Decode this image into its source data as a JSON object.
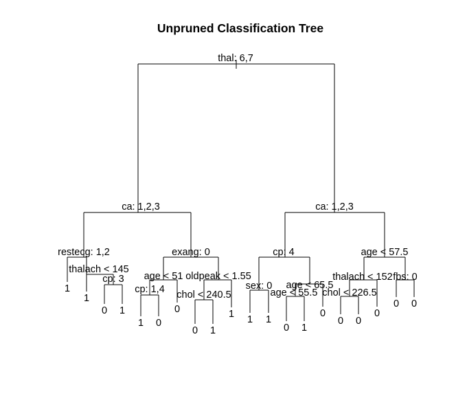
{
  "title": "Unpruned Classification Tree",
  "tree": {
    "split": "thal: 6,7",
    "left": {
      "split": "ca: 1,2,3",
      "left": {
        "split": "restecg: 1,2",
        "left": {
          "leaf": "1"
        },
        "right": {
          "split": "thalach < 145",
          "left": {
            "leaf": "1"
          },
          "right": {
            "split": "cp: 3",
            "left": {
              "leaf": "0"
            },
            "right": {
              "leaf": "1"
            }
          }
        }
      },
      "right": {
        "split": "exang: 0",
        "left": {
          "split": "age < 51",
          "left": {
            "split": "cp: 1,4",
            "left": {
              "leaf": "1"
            },
            "right": {
              "leaf": "0"
            }
          },
          "right": {
            "leaf": "0"
          }
        },
        "right": {
          "split": "oldpeak < 1.55",
          "left": {
            "split": "chol < 240.5",
            "left": {
              "leaf": "0"
            },
            "right": {
              "leaf": "1"
            }
          },
          "right": {
            "leaf": "1"
          }
        }
      }
    },
    "right": {
      "split": "ca: 1,2,3",
      "left": {
        "split": "cp: 4",
        "left": {
          "split": "sex: 0",
          "left": {
            "leaf": "1"
          },
          "right": {
            "leaf": "1"
          }
        },
        "right": {
          "split": "age < 65.5",
          "left": {
            "split": "age < 55.5",
            "left": {
              "leaf": "0"
            },
            "right": {
              "leaf": "1"
            }
          },
          "right": {
            "leaf": "0"
          }
        }
      },
      "right": {
        "split": "age < 57.5",
        "left": {
          "split": "thalach < 152",
          "left": {
            "split": "chol < 226.5",
            "left": {
              "leaf": "0"
            },
            "right": {
              "leaf": "0"
            }
          },
          "right": {
            "leaf": "0"
          }
        },
        "right": {
          "split": "fbs: 0",
          "left": {
            "leaf": "0"
          },
          "right": {
            "leaf": "0"
          }
        }
      }
    }
  }
}
